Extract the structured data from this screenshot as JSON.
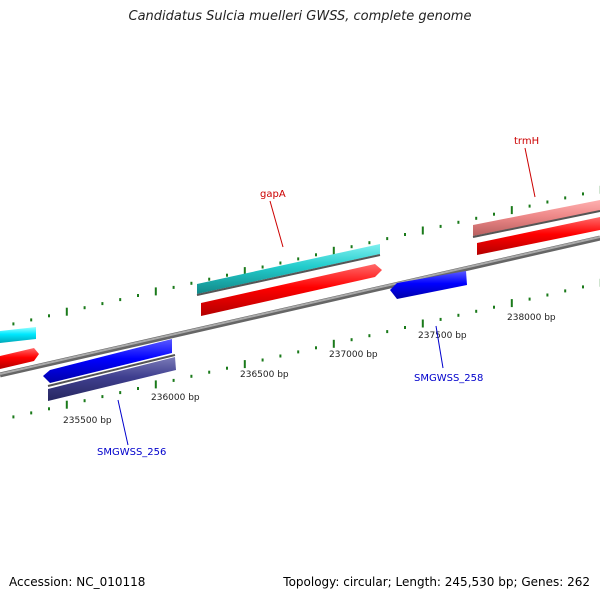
{
  "title": "Candidatus Sulcia muelleri GWSS, complete genome",
  "footer": {
    "accession": "Accession: NC_010118",
    "summary": "Topology: circular; Length: 245,530 bp; Genes: 262"
  },
  "ticks": [
    {
      "label": "235500 bp"
    },
    {
      "label": "236000 bp"
    },
    {
      "label": "236500 bp"
    },
    {
      "label": "237000 bp"
    },
    {
      "label": "237500 bp"
    },
    {
      "label": "238000 bp"
    }
  ],
  "gene_labels": [
    {
      "text": "gapA",
      "color": "#cc0000"
    },
    {
      "text": "trmH",
      "color": "#cc0000"
    },
    {
      "text": "SMGWSS_256",
      "color": "#0000cc"
    },
    {
      "text": "SMGWSS_258",
      "color": "#0000cc"
    }
  ],
  "colors": {
    "backbone": "#888888",
    "tick": "#1a7a1a",
    "cds_forward": "#ff0000",
    "gene_forward": "#22cccc",
    "cds_reverse": "#0000ff",
    "gene_reverse": "#3f3f8f",
    "rna": "#ee8888"
  }
}
